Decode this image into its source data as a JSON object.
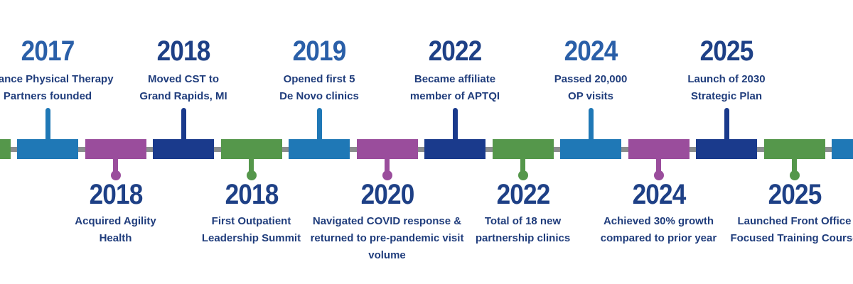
{
  "palette": {
    "light_blue": "#1F78B6",
    "purple": "#9A4D9C",
    "navy": "#1A3A8C",
    "green": "#55974B",
    "axis_gray": "#8A8D8E",
    "year_blue": "#2A5FA8",
    "year_navy": "#1E4086",
    "description_navy": "#203D7C",
    "background": "#FFFFFF"
  },
  "timeline": {
    "type": "horizontal-alternating-timeline",
    "segment_color_cycle": [
      "light_blue",
      "purple",
      "navy",
      "green"
    ],
    "events": [
      {
        "year": "2017",
        "side": "top",
        "color": "light_blue",
        "year_color": "year_blue",
        "lines": [
          "Alliance Physical Therapy",
          "Partners founded"
        ]
      },
      {
        "year": "2018",
        "side": "bottom",
        "color": "purple",
        "year_color": "year_navy",
        "lines": [
          "Acquired Agility",
          "Health"
        ]
      },
      {
        "year": "2018",
        "side": "top",
        "color": "navy",
        "year_color": "year_navy",
        "lines": [
          "Moved CST to",
          "Grand Rapids, MI"
        ]
      },
      {
        "year": "2018",
        "side": "bottom",
        "color": "green",
        "year_color": "year_navy",
        "lines": [
          "First Outpatient",
          "Leadership Summit"
        ]
      },
      {
        "year": "2019",
        "side": "top",
        "color": "light_blue",
        "year_color": "year_blue",
        "lines": [
          "Opened first 5",
          "De Novo clinics"
        ]
      },
      {
        "year": "2020",
        "side": "bottom",
        "color": "purple",
        "year_color": "year_navy",
        "lines": [
          "Navigated COVID response &",
          "returned to pre-pandemic visit",
          "volume"
        ]
      },
      {
        "year": "2022",
        "side": "top",
        "color": "navy",
        "year_color": "year_navy",
        "lines": [
          "Became affiliate",
          "member of APTQI"
        ]
      },
      {
        "year": "2022",
        "side": "bottom",
        "color": "green",
        "year_color": "year_navy",
        "lines": [
          "Total of 18 new",
          "partnership clinics"
        ]
      },
      {
        "year": "2024",
        "side": "top",
        "color": "light_blue",
        "year_color": "year_blue",
        "lines": [
          "Passed 20,000",
          "OP visits"
        ]
      },
      {
        "year": "2024",
        "side": "bottom",
        "color": "purple",
        "year_color": "year_navy",
        "lines": [
          "Achieved 30% growth",
          "compared to prior year"
        ]
      },
      {
        "year": "2025",
        "side": "top",
        "color": "navy",
        "year_color": "year_navy",
        "lines": [
          "Launch of 2030",
          "Strategic Plan"
        ]
      },
      {
        "year": "2025",
        "side": "bottom",
        "color": "green",
        "year_color": "year_navy",
        "lines": [
          "Launched Front Office",
          "Focused Training Course"
        ]
      }
    ]
  }
}
